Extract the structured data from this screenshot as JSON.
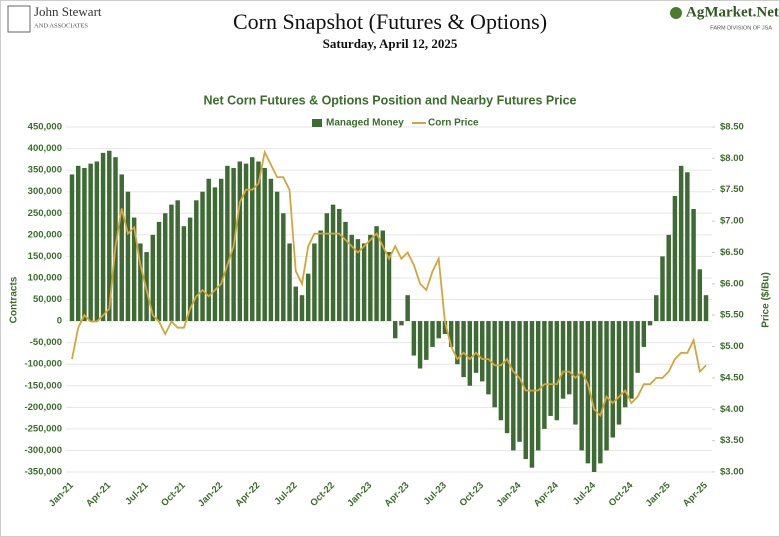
{
  "header": {
    "logo_name": "John Stewart",
    "logo_sub": "AND ASSOCIATES",
    "title": "Corn Snapshot (Futures & Options)",
    "subtitle": "Saturday, April 12, 2025",
    "brand": "AgMarket.Net",
    "brand_sub": "FARM DIVISION OF JSA"
  },
  "chart_data": {
    "type": "bar",
    "title": "Net Corn Futures & Options Position and Nearby Futures Price",
    "y_label": "Contracts",
    "y2_label": "Price ($/Bu)",
    "categories": [
      "Jan-21",
      null,
      null,
      null,
      null,
      null,
      "Apr-21",
      null,
      null,
      null,
      null,
      null,
      "Jul-21",
      null,
      null,
      null,
      null,
      null,
      "Oct-21",
      null,
      null,
      null,
      null,
      null,
      "Jan-22",
      null,
      null,
      null,
      null,
      null,
      "Apr-22",
      null,
      null,
      null,
      null,
      null,
      "Jul-22",
      null,
      null,
      null,
      null,
      null,
      "Oct-22",
      null,
      null,
      null,
      null,
      null,
      "Jan-23",
      null,
      null,
      null,
      null,
      null,
      "Apr-23",
      null,
      null,
      null,
      null,
      null,
      "Jul-23",
      null,
      null,
      null,
      null,
      null,
      "Oct-23",
      null,
      null,
      null,
      null,
      null,
      "Jan-24",
      null,
      null,
      null,
      null,
      null,
      "Apr-24",
      null,
      null,
      null,
      null,
      null,
      "Jul-24",
      null,
      null,
      null,
      null,
      null,
      "Oct-24",
      null,
      null,
      null,
      null,
      null,
      "Jan-25",
      null,
      null,
      null,
      null,
      null,
      "Apr-25"
    ],
    "series": [
      {
        "name": "Managed Money",
        "type": "bar",
        "color": "#3e6b34",
        "values": [
          340000,
          360000,
          355000,
          365000,
          370000,
          390000,
          395000,
          380000,
          340000,
          300000,
          240000,
          180000,
          160000,
          200000,
          230000,
          250000,
          270000,
          280000,
          220000,
          240000,
          280000,
          300000,
          330000,
          310000,
          330000,
          360000,
          355000,
          370000,
          365000,
          380000,
          370000,
          355000,
          330000,
          300000,
          250000,
          180000,
          80000,
          60000,
          110000,
          180000,
          210000,
          250000,
          270000,
          260000,
          230000,
          200000,
          190000,
          180000,
          200000,
          220000,
          210000,
          160000,
          -40000,
          -10000,
          60000,
          -80000,
          -110000,
          -90000,
          -60000,
          -40000,
          -30000,
          -60000,
          -100000,
          -130000,
          -150000,
          -120000,
          -140000,
          -170000,
          -200000,
          -230000,
          -260000,
          -300000,
          -280000,
          -320000,
          -340000,
          -300000,
          -250000,
          -220000,
          -230000,
          -180000,
          -170000,
          -240000,
          -300000,
          -330000,
          -350000,
          -330000,
          -300000,
          -270000,
          -240000,
          -200000,
          -180000,
          -120000,
          -60000,
          -10000,
          60000,
          150000,
          200000,
          290000,
          360000,
          345000,
          260000,
          120000,
          60000
        ]
      },
      {
        "name": "Corn Price",
        "type": "line",
        "axis": "y2",
        "color": "#d4a53a",
        "values": [
          4.8,
          5.3,
          5.5,
          5.4,
          5.4,
          5.5,
          5.6,
          6.6,
          7.2,
          6.8,
          6.9,
          6.3,
          5.9,
          5.5,
          5.4,
          5.2,
          5.4,
          5.3,
          5.3,
          5.6,
          5.8,
          5.9,
          5.8,
          5.9,
          6.0,
          6.3,
          6.6,
          7.3,
          7.5,
          7.5,
          7.6,
          8.1,
          7.9,
          7.7,
          7.7,
          7.5,
          6.2,
          6.0,
          6.6,
          6.8,
          6.8,
          6.8,
          6.8,
          6.8,
          6.7,
          6.6,
          6.5,
          6.6,
          6.7,
          6.8,
          6.6,
          6.4,
          6.6,
          6.4,
          6.5,
          6.3,
          6.0,
          5.9,
          6.2,
          6.4,
          5.4,
          5.0,
          4.8,
          4.9,
          4.8,
          4.9,
          4.8,
          4.8,
          4.7,
          4.7,
          4.8,
          4.6,
          4.5,
          4.3,
          4.3,
          4.3,
          4.4,
          4.4,
          4.4,
          4.6,
          4.6,
          4.5,
          4.6,
          4.4,
          4.0,
          3.9,
          4.2,
          4.1,
          4.2,
          4.3,
          4.1,
          4.2,
          4.4,
          4.4,
          4.5,
          4.5,
          4.6,
          4.8,
          4.9,
          4.9,
          5.1,
          4.6,
          4.7
        ]
      }
    ],
    "ylim": [
      -350000,
      450000
    ],
    "yticks": [
      {
        "value": -350000,
        "label": "-350,000"
      },
      {
        "value": -300000,
        "label": "-300,000"
      },
      {
        "value": -250000,
        "label": "-250,000"
      },
      {
        "value": -200000,
        "label": "-200,000"
      },
      {
        "value": -150000,
        "label": "-150,000"
      },
      {
        "value": -100000,
        "label": "-100,000"
      },
      {
        "value": -50000,
        "label": "-50,000"
      },
      0,
      {
        "value": 50000,
        "label": "50,000"
      },
      {
        "value": 100000,
        "label": "100,000"
      },
      {
        "value": 150000,
        "label": "150,000"
      },
      {
        "value": 200000,
        "label": "200,000"
      },
      {
        "value": 250000,
        "label": "250,000"
      },
      {
        "value": 300000,
        "label": "300,000"
      },
      {
        "value": 350000,
        "label": "350,000"
      },
      {
        "value": 400000,
        "label": "400,000"
      },
      {
        "value": 450000,
        "label": "450,000"
      }
    ],
    "y2lim": [
      3,
      8.5
    ],
    "y2ticks": [
      {
        "value": 3,
        "label": "$3.00"
      },
      {
        "value": 3.5,
        "label": "$3.50"
      },
      {
        "value": 4,
        "label": "$4.00"
      },
      {
        "value": 4.5,
        "label": "$4.50"
      },
      {
        "value": 5,
        "label": "$5.00"
      },
      {
        "value": 5.5,
        "label": "$5.50"
      },
      {
        "value": 6,
        "label": "$6.00"
      },
      {
        "value": 6.5,
        "label": "$6.50"
      },
      {
        "value": 7,
        "label": "$7.00"
      },
      {
        "value": 7.5,
        "label": "$7.50"
      },
      {
        "value": 8,
        "label": "$8.00"
      },
      {
        "value": 8.5,
        "label": "$8.50"
      }
    ],
    "grid": true,
    "legend": "top"
  }
}
